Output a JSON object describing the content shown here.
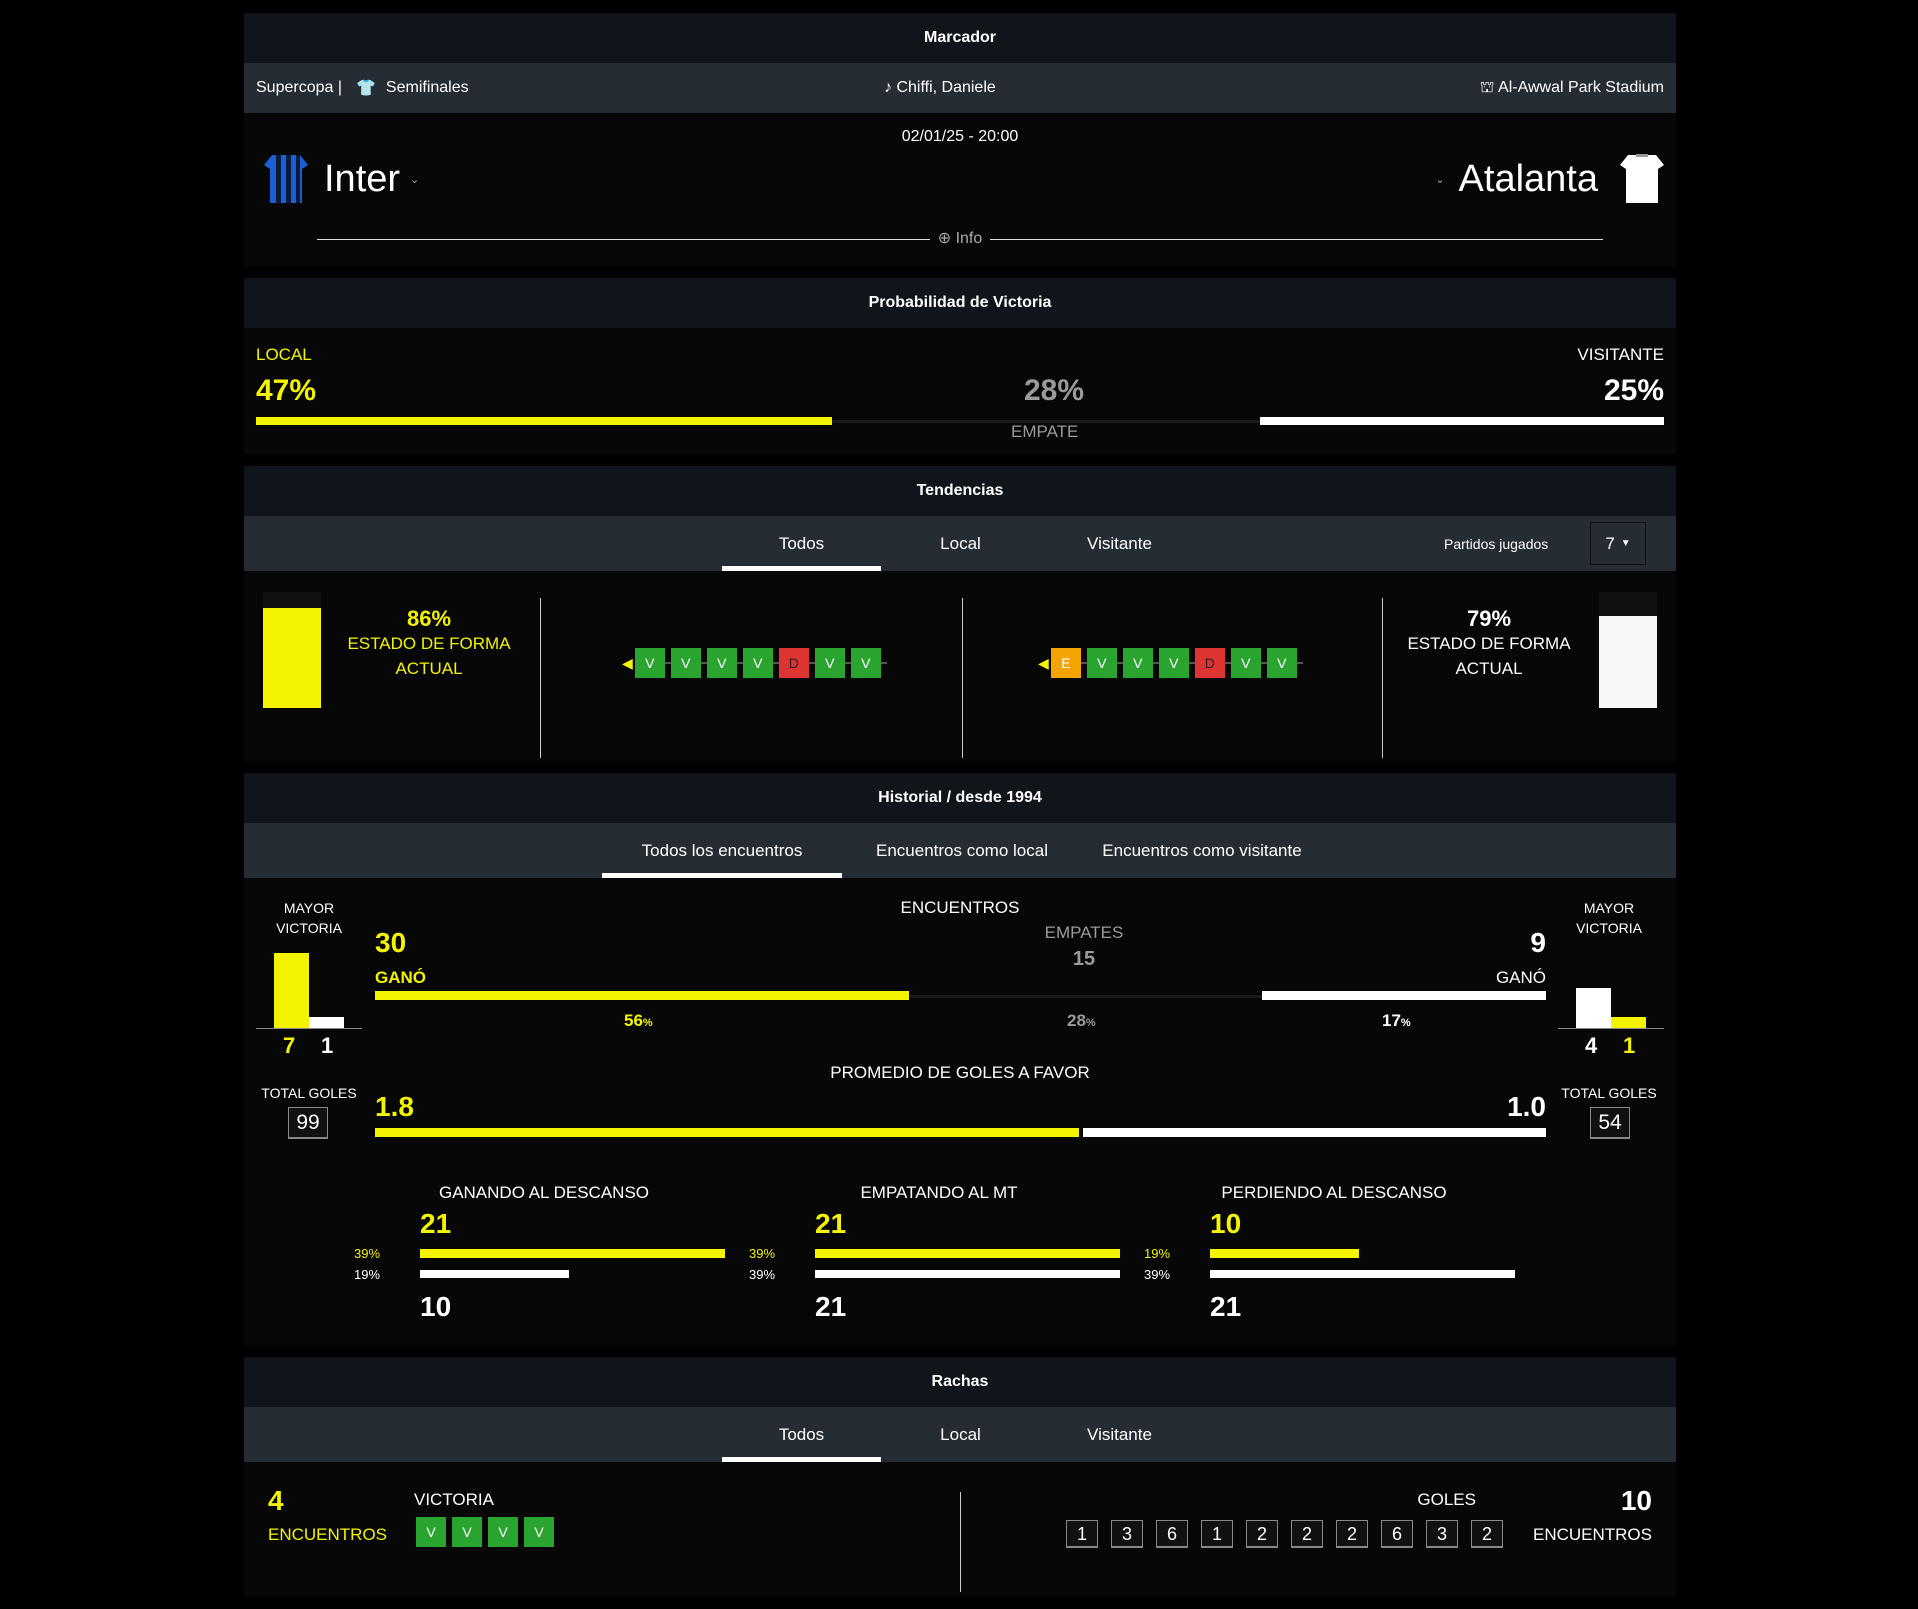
{
  "marcador": {
    "title": "Marcador",
    "competition": "Supercopa |",
    "round": "Semifinales",
    "referee": "Chiffi, Daniele",
    "stadium": "Al-Awwal Park Stadium",
    "datetime": "02/01/25 - 20:00",
    "home": "Inter",
    "away": "Atalanta",
    "info": "Info"
  },
  "prob": {
    "title": "Probabilidad de Victoria",
    "local_label": "LOCAL",
    "local": "47%",
    "draw": "28%",
    "draw_label": "EMPATE",
    "away_label": "VISITANTE",
    "away": "25%",
    "colors": {
      "home": "#f4f400",
      "away": "#ffffff"
    }
  },
  "tend": {
    "title": "Tendencias",
    "tabs": [
      "Todos",
      "Local",
      "Visitante"
    ],
    "played_label": "Partidos jugados",
    "played": "7",
    "home_pct": "86%",
    "home_label1": "ESTADO DE FORMA",
    "home_label2": "ACTUAL",
    "away_pct": "79%",
    "away_label1": "ESTADO DE FORMA",
    "away_label2": "ACTUAL",
    "home_form": [
      "V",
      "V",
      "V",
      "V",
      "D",
      "V",
      "V"
    ],
    "away_form": [
      "E",
      "V",
      "V",
      "V",
      "D",
      "V",
      "V"
    ]
  },
  "hist": {
    "title": "Historial / desde 1994",
    "tabs": [
      "Todos los encuentros",
      "Encuentros como local",
      "Encuentros como visitante"
    ],
    "mayor": "MAYOR",
    "victoria": "VICTORIA",
    "home_big": [
      "7",
      "1"
    ],
    "away_big": [
      "4",
      "1"
    ],
    "encuentros": "ENCUENTROS",
    "home_won": "30",
    "won_label": "GANÓ",
    "away_won": "9",
    "empates_label": "EMPATES",
    "empates": "15",
    "home_pct": "56",
    "draw_pct": "28",
    "away_pct": "17",
    "pct": "%",
    "avg_label": "PROMEDIO DE GOLES A FAVOR",
    "home_avg": "1.8",
    "away_avg": "1.0",
    "total_label": "TOTAL GOLES",
    "home_total": "99",
    "away_total": "54",
    "ht": [
      {
        "label": "GANANDO AL DESCANSO",
        "home": "21",
        "away": "10",
        "home_pct": "39%",
        "away_pct": "19%"
      },
      {
        "label": "EMPATANDO AL MT",
        "home": "21",
        "away": "21",
        "home_pct": "39%",
        "away_pct": "39%"
      },
      {
        "label": "PERDIENDO AL DESCANSO",
        "home": "10",
        "away": "21",
        "home_pct": "19%",
        "away_pct": "39%"
      }
    ]
  },
  "rachas": {
    "title": "Rachas",
    "tabs": [
      "Todos",
      "Local",
      "Visitante"
    ],
    "home_n": "4",
    "home_unit": "ENCUENTROS",
    "home_type": "VICTORIA",
    "home_boxes": [
      "V",
      "V",
      "V",
      "V"
    ],
    "away_type": "GOLES",
    "away_n": "10",
    "away_unit": "ENCUENTROS",
    "goals": [
      "1",
      "3",
      "6",
      "1",
      "2",
      "2",
      "2",
      "6",
      "3",
      "2"
    ]
  }
}
